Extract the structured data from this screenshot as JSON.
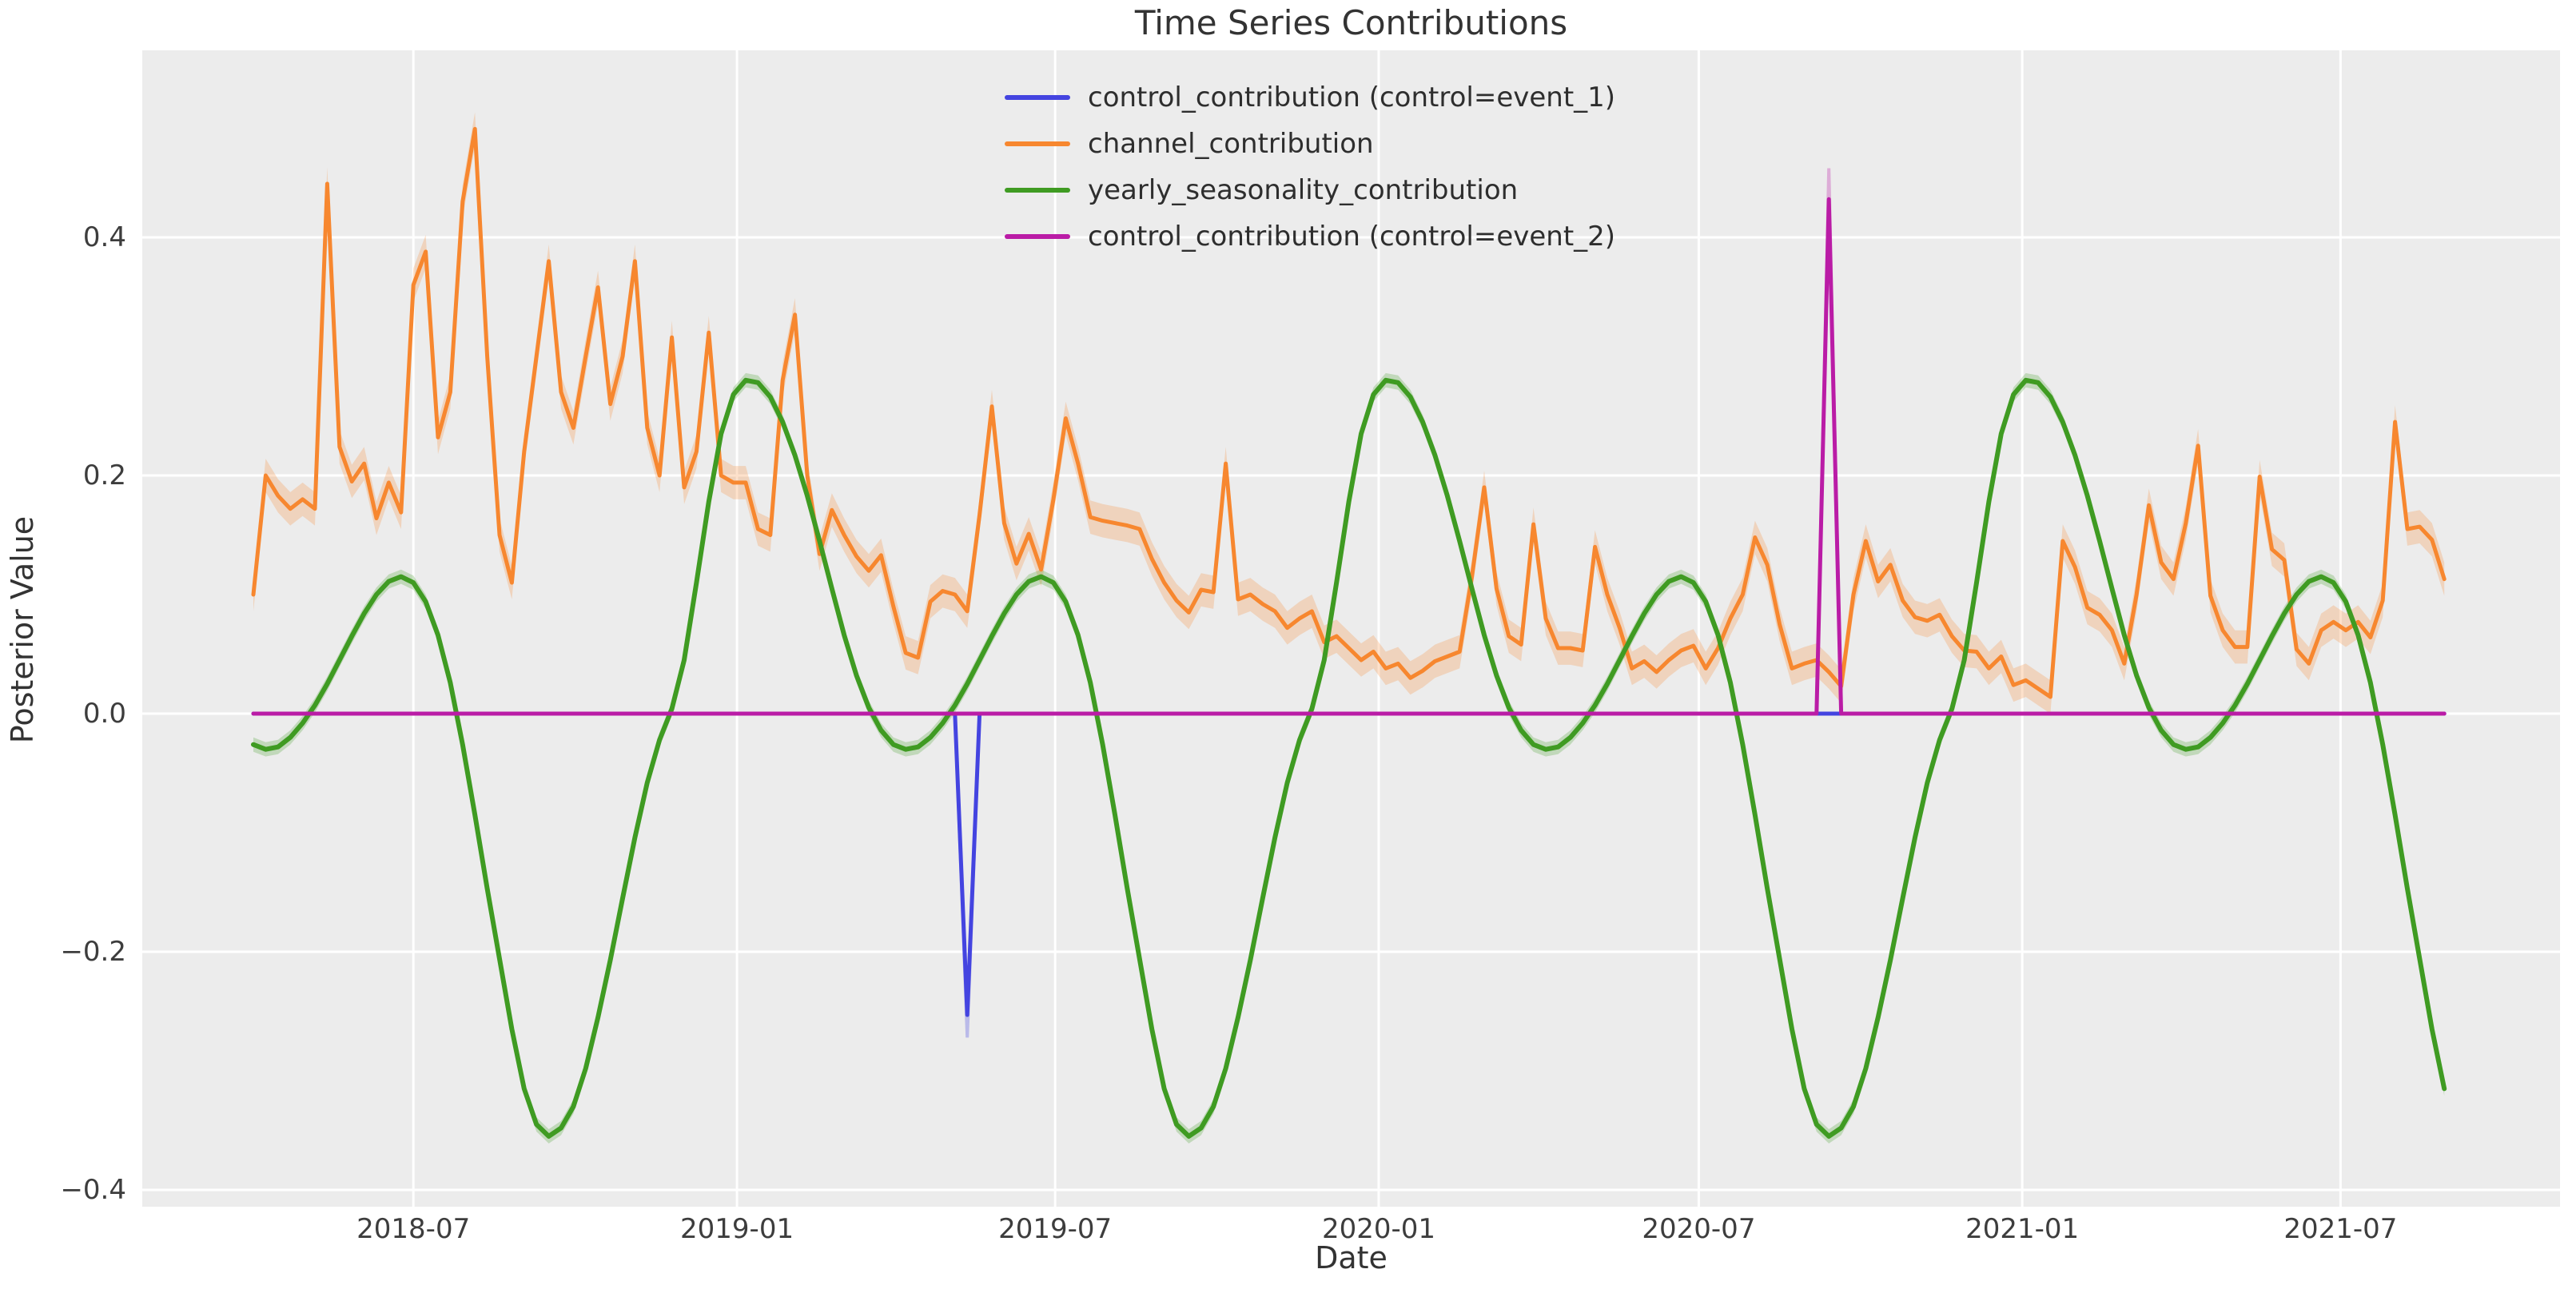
{
  "figure": {
    "title": "Time Series Contributions",
    "xlabel": "Date",
    "ylabel": "Posterior Value"
  },
  "chart_data": {
    "type": "line",
    "title": "Time Series Contributions",
    "xlabel": "Date",
    "ylabel": "Posterior Value",
    "background_color": "#ececec",
    "grid": true,
    "grid_color": "#ffffff",
    "legend_position": "upper center, no frame",
    "x_start_date": "2018-04-01",
    "x_step_days": 7,
    "n_points": 179,
    "ylim": [
      -0.414,
      0.557
    ],
    "y_ticks": [
      {
        "label": "0.4",
        "value": 0.4
      },
      {
        "label": "0.2",
        "value": 0.2
      },
      {
        "label": "0.0",
        "value": 0.0
      },
      {
        "label": "−0.2",
        "value": -0.2
      },
      {
        "label": "−0.4",
        "value": -0.4
      }
    ],
    "x_ticks": [
      {
        "label": "2018-07",
        "week": 13.0
      },
      {
        "label": "2019-01",
        "week": 39.29
      },
      {
        "label": "2019-07",
        "week": 65.14
      },
      {
        "label": "2020-01",
        "week": 91.43
      },
      {
        "label": "2020-07",
        "week": 117.43
      },
      {
        "label": "2021-01",
        "week": 143.71
      },
      {
        "label": "2021-07",
        "week": 169.57
      }
    ],
    "series": [
      {
        "name": "control_contribution (control=event_1)",
        "color": "#4444e0",
        "line_width": 5,
        "kind": "spike",
        "base_value": 0.0,
        "spikes": [
          {
            "date": "2019-05-12",
            "index": 58,
            "value": -0.253,
            "band_tip": -0.272
          }
        ]
      },
      {
        "name": "channel_contribution",
        "color": "#f7872f",
        "line_width": 5,
        "kind": "line",
        "band_halfwidth": 0.014,
        "values": [
          0.1,
          0.2,
          0.183,
          0.172,
          0.18,
          0.172,
          0.445,
          0.224,
          0.195,
          0.21,
          0.164,
          0.194,
          0.169,
          0.36,
          0.388,
          0.232,
          0.27,
          0.43,
          0.491,
          0.3,
          0.15,
          0.11,
          0.22,
          0.3,
          0.38,
          0.27,
          0.24,
          0.3,
          0.358,
          0.26,
          0.3,
          0.38,
          0.24,
          0.2,
          0.316,
          0.19,
          0.22,
          0.32,
          0.2,
          0.194,
          0.194,
          0.155,
          0.15,
          0.28,
          0.335,
          0.2,
          0.134,
          0.171,
          0.15,
          0.132,
          0.12,
          0.133,
          0.09,
          0.051,
          0.047,
          0.094,
          0.103,
          0.1,
          0.086,
          0.167,
          0.258,
          0.16,
          0.126,
          0.151,
          0.121,
          0.18,
          0.248,
          0.21,
          0.165,
          0.162,
          0.16,
          0.158,
          0.155,
          0.13,
          0.11,
          0.095,
          0.085,
          0.104,
          0.102,
          0.21,
          0.096,
          0.1,
          0.092,
          0.086,
          0.072,
          0.08,
          0.086,
          0.06,
          0.065,
          0.055,
          0.045,
          0.052,
          0.038,
          0.042,
          0.03,
          0.036,
          0.044,
          0.048,
          0.052,
          0.115,
          0.19,
          0.105,
          0.065,
          0.058,
          0.159,
          0.08,
          0.055,
          0.055,
          0.053,
          0.14,
          0.1,
          0.072,
          0.038,
          0.044,
          0.035,
          0.045,
          0.053,
          0.057,
          0.038,
          0.055,
          0.08,
          0.1,
          0.148,
          0.125,
          0.075,
          0.038,
          0.042,
          0.045,
          0.035,
          0.023,
          0.1,
          0.145,
          0.111,
          0.125,
          0.095,
          0.081,
          0.078,
          0.083,
          0.065,
          0.053,
          0.052,
          0.038,
          0.048,
          0.024,
          0.028,
          0.021,
          0.014,
          0.145,
          0.123,
          0.089,
          0.083,
          0.07,
          0.042,
          0.1,
          0.175,
          0.127,
          0.113,
          0.16,
          0.225,
          0.099,
          0.07,
          0.056,
          0.056,
          0.199,
          0.138,
          0.129,
          0.054,
          0.042,
          0.07,
          0.077,
          0.07,
          0.077,
          0.064,
          0.095,
          0.245,
          0.155,
          0.157,
          0.146,
          0.113
        ]
      },
      {
        "name": "yearly_seasonality_contribution",
        "color": "#3f9b22",
        "line_width": 6,
        "kind": "line",
        "band_halfwidth": 0.006,
        "values": [
          -0.026,
          -0.03,
          -0.028,
          -0.02,
          -0.008,
          0.007,
          0.025,
          0.045,
          0.065,
          0.084,
          0.1,
          0.111,
          0.115,
          0.11,
          0.094,
          0.066,
          0.026,
          -0.026,
          -0.085,
          -0.147,
          -0.206,
          -0.265,
          -0.315,
          -0.345,
          -0.355,
          -0.348,
          -0.33,
          -0.298,
          -0.255,
          -0.207,
          -0.155,
          -0.104,
          -0.058,
          -0.022,
          0.004,
          0.045,
          0.11,
          0.178,
          0.235,
          0.268,
          0.28,
          0.278,
          0.266,
          0.245,
          0.217,
          0.183,
          0.145,
          0.105,
          0.066,
          0.032,
          0.005,
          -0.014,
          -0.026,
          -0.03,
          -0.028,
          -0.02,
          -0.008,
          0.007,
          0.025,
          0.045,
          0.065,
          0.084,
          0.1,
          0.111,
          0.115,
          0.11,
          0.094,
          0.066,
          0.026,
          -0.026,
          -0.085,
          -0.147,
          -0.206,
          -0.265,
          -0.315,
          -0.345,
          -0.355,
          -0.348,
          -0.33,
          -0.298,
          -0.255,
          -0.207,
          -0.155,
          -0.104,
          -0.058,
          -0.022,
          0.004,
          0.045,
          0.11,
          0.178,
          0.235,
          0.268,
          0.28,
          0.278,
          0.266,
          0.245,
          0.217,
          0.183,
          0.145,
          0.105,
          0.066,
          0.032,
          0.005,
          -0.014,
          -0.026,
          -0.03,
          -0.028,
          -0.02,
          -0.008,
          0.007,
          0.025,
          0.045,
          0.065,
          0.084,
          0.1,
          0.111,
          0.115,
          0.11,
          0.094,
          0.066,
          0.026,
          -0.026,
          -0.085,
          -0.147,
          -0.206,
          -0.265,
          -0.315,
          -0.345,
          -0.355,
          -0.348,
          -0.33,
          -0.298,
          -0.255,
          -0.207,
          -0.155,
          -0.104,
          -0.058,
          -0.022,
          0.004,
          0.045,
          0.11,
          0.178,
          0.235,
          0.268,
          0.28,
          0.278,
          0.266,
          0.245,
          0.217,
          0.183,
          0.145,
          0.105,
          0.066,
          0.032,
          0.005,
          -0.014,
          -0.026,
          -0.03,
          -0.028,
          -0.02,
          -0.008,
          0.007,
          0.025,
          0.045,
          0.065,
          0.084,
          0.1,
          0.111,
          0.115,
          0.11,
          0.094,
          0.066,
          0.026,
          -0.026,
          -0.085,
          -0.147,
          -0.206,
          -0.265,
          -0.315
        ]
      },
      {
        "name": "control_contribution (control=event_2)",
        "color": "#ba1ca6",
        "line_width": 5,
        "kind": "spike",
        "base_value": 0.0,
        "spikes": [
          {
            "date": "2020-09-13",
            "index": 128,
            "value": 0.432,
            "band_tip": 0.458
          }
        ]
      }
    ]
  }
}
